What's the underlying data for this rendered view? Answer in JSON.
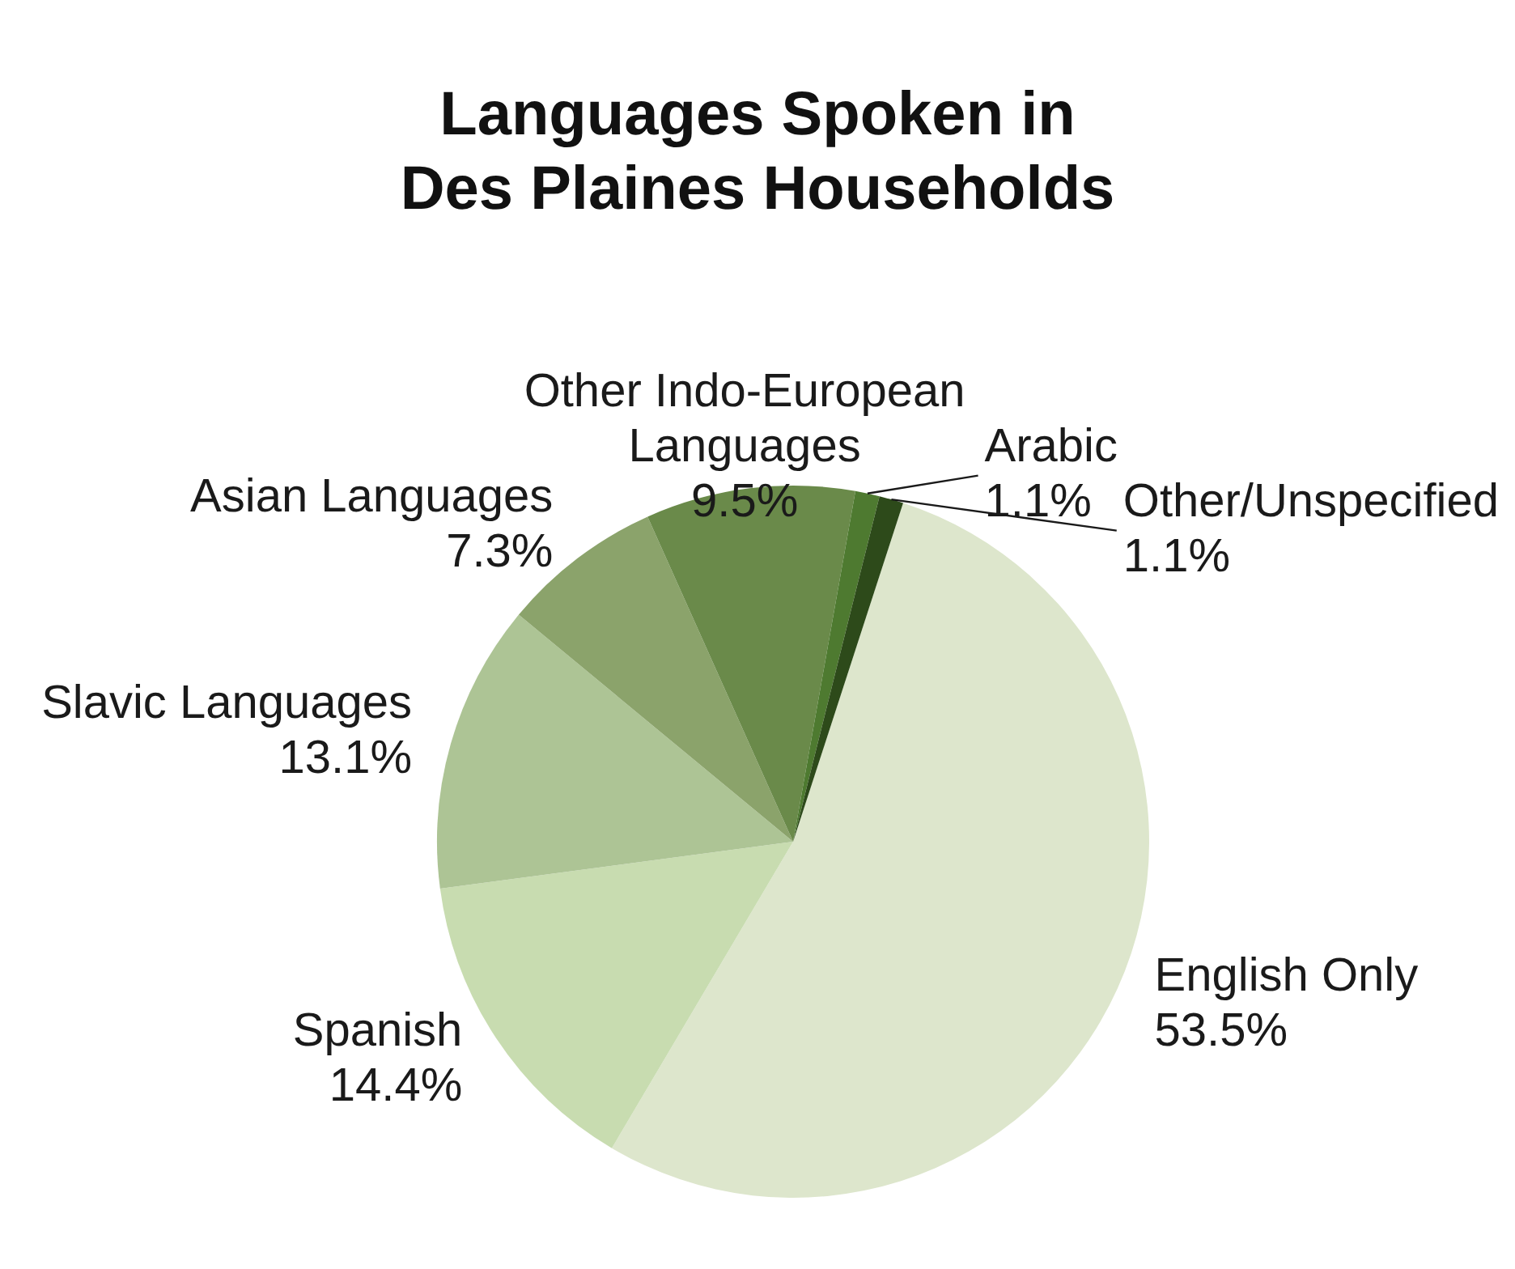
{
  "chart_data": {
    "type": "pie",
    "title": "Languages Spoken in Des Plaines Households",
    "categories": [
      "English Only",
      "Spanish",
      "Slavic Languages",
      "Asian Languages",
      "Other Indo-European Languages",
      "Arabic",
      "Other/Unspecified"
    ],
    "values": [
      53.5,
      14.4,
      13.1,
      7.3,
      9.5,
      1.1,
      1.1
    ],
    "colors": [
      "#dde6cc",
      "#c8dcb0",
      "#adc495",
      "#8ba36b",
      "#6a8a4a",
      "#4e7a30",
      "#2d4a1a"
    ],
    "value_labels": [
      "53.5%",
      "14.4%",
      "13.1%",
      "7.3%",
      "9.5%",
      "1.1%",
      "1.1%"
    ],
    "legend": false
  }
}
